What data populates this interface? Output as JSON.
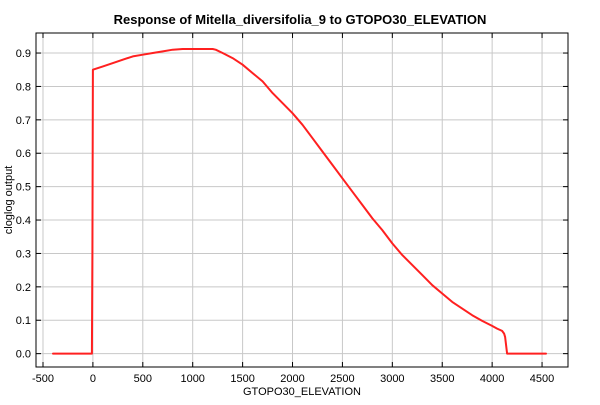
{
  "chart_data": {
    "type": "line",
    "title": "Response of Mitella_diversifolia_9 to GTOPO30_ELEVATION",
    "xlabel": "GTOPO30_ELEVATION",
    "ylabel": "cloglog output",
    "xlim": [
      -570,
      4760
    ],
    "ylim": [
      -0.04,
      0.96
    ],
    "xticks": [
      -500,
      0,
      500,
      1000,
      1500,
      2000,
      2500,
      3000,
      3500,
      4000,
      4500
    ],
    "xtick_labels": [
      "-500",
      "0",
      "500",
      "1000",
      "1500",
      "2000",
      "2500",
      "3000",
      "3500",
      "4000",
      "4500"
    ],
    "yticks": [
      0.0,
      0.1,
      0.2,
      0.3,
      0.4,
      0.5,
      0.6,
      0.7,
      0.8,
      0.9
    ],
    "ytick_labels": [
      "0.0",
      "0.1",
      "0.2",
      "0.3",
      "0.4",
      "0.5",
      "0.6",
      "0.7",
      "0.8",
      "0.9"
    ],
    "grid": true,
    "series": [
      {
        "color": "#ff2020",
        "x": [
          -400,
          -10,
          -5,
          0,
          100,
          200,
          300,
          400,
          500,
          600,
          700,
          800,
          900,
          1000,
          1100,
          1200,
          1230,
          1300,
          1400,
          1500,
          1600,
          1700,
          1800,
          1900,
          2000,
          2100,
          2200,
          2300,
          2400,
          2500,
          2600,
          2700,
          2800,
          2900,
          3000,
          3100,
          3200,
          3300,
          3400,
          3500,
          3600,
          3700,
          3800,
          3900,
          4000,
          4050,
          4100,
          4120,
          4130,
          4150,
          4540
        ],
        "y": [
          0.0,
          0.0,
          0.3,
          0.85,
          0.86,
          0.87,
          0.88,
          0.89,
          0.895,
          0.9,
          0.905,
          0.91,
          0.912,
          0.912,
          0.912,
          0.912,
          0.91,
          0.9,
          0.885,
          0.865,
          0.84,
          0.815,
          0.78,
          0.75,
          0.72,
          0.685,
          0.645,
          0.605,
          0.565,
          0.525,
          0.485,
          0.445,
          0.405,
          0.37,
          0.33,
          0.295,
          0.265,
          0.235,
          0.205,
          0.18,
          0.155,
          0.135,
          0.115,
          0.098,
          0.083,
          0.075,
          0.068,
          0.06,
          0.05,
          0.0,
          0.0
        ]
      }
    ]
  }
}
